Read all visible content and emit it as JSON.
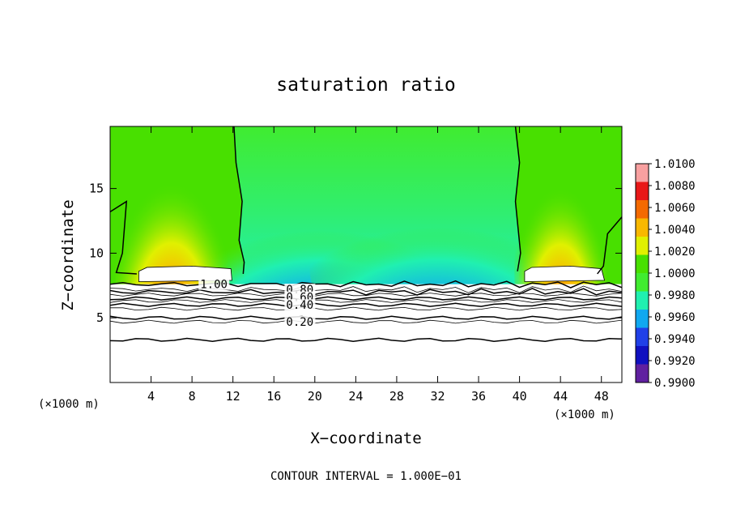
{
  "chart_data": {
    "type": "heatmap",
    "title": "saturation ratio",
    "xlabel": "X−coordinate",
    "ylabel": "Z−coordinate",
    "x_unit": "(×1000 m)",
    "x_unit_right": "(×1000 m)",
    "xlim": [
      0,
      50
    ],
    "ylim": [
      0,
      19.8
    ],
    "x_ticks": [
      "4",
      "8",
      "12",
      "16",
      "20",
      "24",
      "28",
      "32",
      "36",
      "40",
      "44",
      "48"
    ],
    "x_tick_values": [
      4,
      8,
      12,
      16,
      20,
      24,
      28,
      32,
      36,
      40,
      44,
      48
    ],
    "y_ticks": [
      "5",
      "10",
      "15"
    ],
    "y_tick_values": [
      5,
      10,
      15
    ],
    "colorbar": {
      "levels": [
        "1.0100",
        "1.0080",
        "1.0060",
        "1.0040",
        "1.0020",
        "1.0000",
        "0.9980",
        "0.9960",
        "0.9940",
        "0.9920",
        "0.9900"
      ],
      "colors": [
        "#f8a0a0",
        "#e81818",
        "#f46a00",
        "#f8b800",
        "#e0f000",
        "#48e000",
        "#40ec30",
        "#20f0b0",
        "#10a8f0",
        "#2040e8",
        "#1010c0",
        "#6020a0"
      ]
    },
    "contour_labels": [
      "1.00",
      "0.80",
      "0.60",
      "0.40",
      "0.20"
    ],
    "contour_label_values": [
      1.0,
      0.8,
      0.6,
      0.4,
      0.2
    ],
    "contour_label_positions": [
      [
        8.8,
        7.6
      ],
      [
        17.2,
        7.2
      ],
      [
        17.2,
        6.6
      ],
      [
        17.2,
        6.0
      ],
      [
        17.2,
        4.7
      ]
    ],
    "contour_line_heights": [
      7.6,
      7.2,
      7.0,
      6.8,
      6.5,
      6.3,
      6.0,
      5.7,
      5.0,
      4.7,
      3.3
    ],
    "footer": "CONTOUR INTERVAL = 1.000E−01"
  }
}
